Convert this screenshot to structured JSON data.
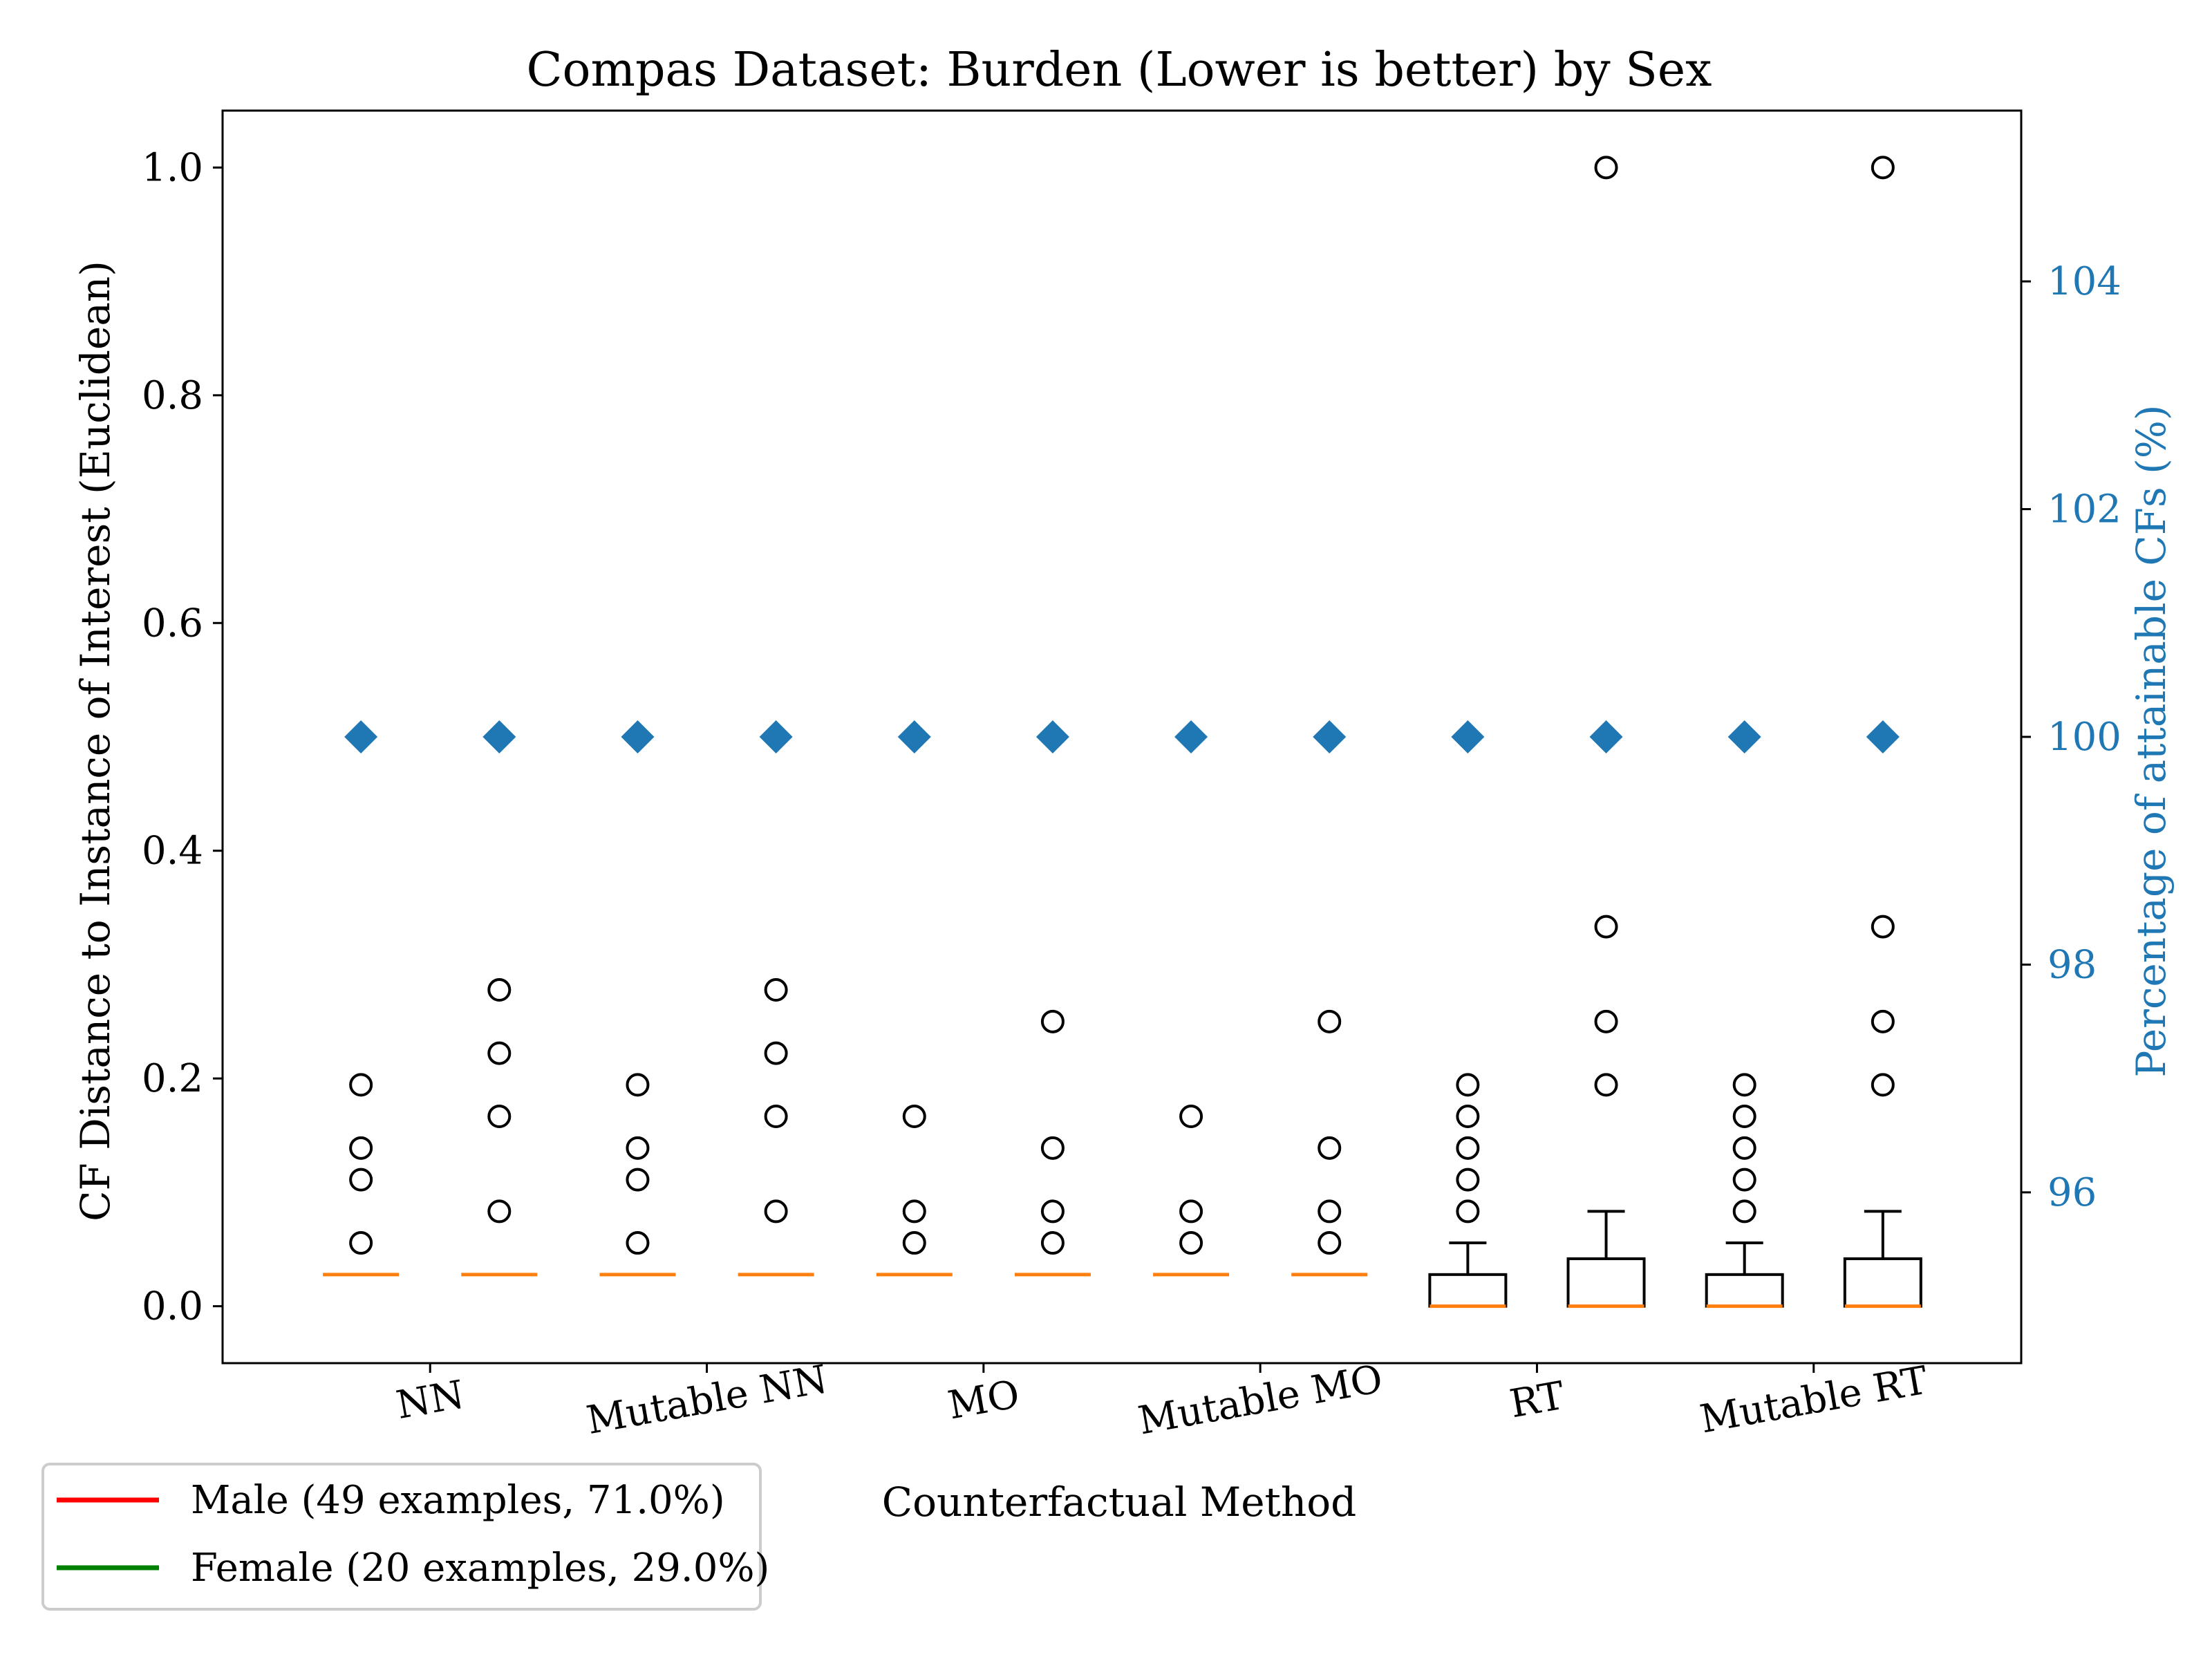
{
  "chart_data": {
    "type": "box",
    "title": "Compas Dataset: Burden (Lower is better) by Sex",
    "xlabel": "Counterfactual Method",
    "ylabel": "CF Distance to Instance of Interest (Euclidean)",
    "ylabel_right": "Percentage of attainable CFs (%)",
    "ylim": [
      -0.05,
      1.05
    ],
    "ylim_right": [
      94.5,
      105.5
    ],
    "yticks": [
      "0.0",
      "0.2",
      "0.4",
      "0.6",
      "0.8",
      "1.0"
    ],
    "yticks_right": [
      "96",
      "98",
      "100",
      "102",
      "104"
    ],
    "categories": [
      "NN",
      "Mutable NN",
      "MO",
      "Mutable MO",
      "RT",
      "Mutable RT"
    ],
    "grid": false,
    "legend": {
      "placement": "below-left",
      "entries": [
        {
          "label": "Male (49 examples, 71.0%)",
          "color": "#ff0000"
        },
        {
          "label": "Female (20 examples, 29.0%)",
          "color": "#008000"
        }
      ]
    },
    "colors": {
      "median": "#ff7f0e",
      "attainable_marker": "#1f77b4",
      "box": "#000000"
    },
    "boxes": [
      {
        "method": "NN",
        "group": "Male",
        "q1": 0.0278,
        "median": 0.0278,
        "q3": 0.0278,
        "whisker_low": 0.0278,
        "whisker_high": 0.0278,
        "outliers": [
          0.0556,
          0.1111,
          0.1389,
          0.1944
        ],
        "attainable_pct": 100
      },
      {
        "method": "NN",
        "group": "Female",
        "q1": 0.0278,
        "median": 0.0278,
        "q3": 0.0278,
        "whisker_low": 0.0278,
        "whisker_high": 0.0278,
        "outliers": [
          0.0833,
          0.1667,
          0.2222,
          0.2778
        ],
        "attainable_pct": 100
      },
      {
        "method": "Mutable NN",
        "group": "Male",
        "q1": 0.0278,
        "median": 0.0278,
        "q3": 0.0278,
        "whisker_low": 0.0278,
        "whisker_high": 0.0278,
        "outliers": [
          0.0556,
          0.1111,
          0.1389,
          0.1944
        ],
        "attainable_pct": 100
      },
      {
        "method": "Mutable NN",
        "group": "Female",
        "q1": 0.0278,
        "median": 0.0278,
        "q3": 0.0278,
        "whisker_low": 0.0278,
        "whisker_high": 0.0278,
        "outliers": [
          0.0833,
          0.1667,
          0.2222,
          0.2778
        ],
        "attainable_pct": 100
      },
      {
        "method": "MO",
        "group": "Male",
        "q1": 0.0278,
        "median": 0.0278,
        "q3": 0.0278,
        "whisker_low": 0.0278,
        "whisker_high": 0.0278,
        "outliers": [
          0.0556,
          0.0833,
          0.1667
        ],
        "attainable_pct": 100
      },
      {
        "method": "MO",
        "group": "Female",
        "q1": 0.0278,
        "median": 0.0278,
        "q3": 0.0278,
        "whisker_low": 0.0278,
        "whisker_high": 0.0278,
        "outliers": [
          0.0556,
          0.0833,
          0.1389,
          0.25
        ],
        "attainable_pct": 100
      },
      {
        "method": "Mutable MO",
        "group": "Male",
        "q1": 0.0278,
        "median": 0.0278,
        "q3": 0.0278,
        "whisker_low": 0.0278,
        "whisker_high": 0.0278,
        "outliers": [
          0.0556,
          0.0833,
          0.1667
        ],
        "attainable_pct": 100
      },
      {
        "method": "Mutable MO",
        "group": "Female",
        "q1": 0.0278,
        "median": 0.0278,
        "q3": 0.0278,
        "whisker_low": 0.0278,
        "whisker_high": 0.0278,
        "outliers": [
          0.0556,
          0.0833,
          0.1389,
          0.25
        ],
        "attainable_pct": 100
      },
      {
        "method": "RT",
        "group": "Male",
        "q1": 0.0,
        "median": 0.0,
        "q3": 0.0278,
        "whisker_low": 0.0,
        "whisker_high": 0.0556,
        "outliers": [
          0.0833,
          0.1111,
          0.1389,
          0.1667,
          0.1944
        ],
        "attainable_pct": 100
      },
      {
        "method": "RT",
        "group": "Female",
        "q1": 0.0,
        "median": 0.0,
        "q3": 0.0417,
        "whisker_low": 0.0,
        "whisker_high": 0.0833,
        "outliers": [
          0.1944,
          0.25,
          0.3333,
          1.0
        ],
        "attainable_pct": 100
      },
      {
        "method": "Mutable RT",
        "group": "Male",
        "q1": 0.0,
        "median": 0.0,
        "q3": 0.0278,
        "whisker_low": 0.0,
        "whisker_high": 0.0556,
        "outliers": [
          0.0833,
          0.1111,
          0.1389,
          0.1667,
          0.1944
        ],
        "attainable_pct": 100
      },
      {
        "method": "Mutable RT",
        "group": "Female",
        "q1": 0.0,
        "median": 0.0,
        "q3": 0.0417,
        "whisker_low": 0.0,
        "whisker_high": 0.0833,
        "outliers": [
          0.1944,
          0.25,
          0.3333,
          1.0
        ],
        "attainable_pct": 100
      }
    ]
  }
}
